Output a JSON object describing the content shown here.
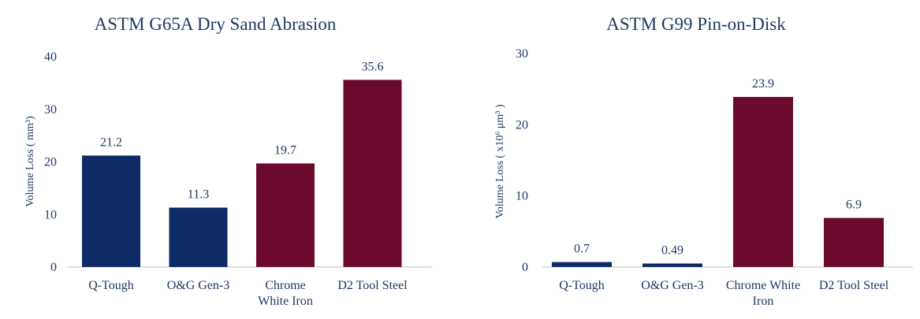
{
  "colors": {
    "navy": "#0d2b67",
    "maroon": "#6b0a2e",
    "text": "#1f3864"
  },
  "chart_data": [
    {
      "type": "bar",
      "title": "ASTM G65A Dry Sand Abrasion",
      "ylabel": "Volume Loss ( mm³)",
      "xlabel": "",
      "ylim": [
        0,
        40
      ],
      "yticks": [
        "0",
        "10",
        "20",
        "30",
        "40"
      ],
      "ytick_values": [
        0,
        10,
        20,
        30,
        40
      ],
      "grid": false,
      "categories": [
        [
          "Q-Tough"
        ],
        [
          "O&G Gen-3"
        ],
        [
          "Chrome",
          "White Iron"
        ],
        [
          "D2 Tool Steel"
        ]
      ],
      "values": [
        21.2,
        11.3,
        19.7,
        35.6
      ],
      "value_labels": [
        "21.2",
        "11.3",
        "19.7",
        "35.6"
      ],
      "bar_colors": [
        "#0d2b67",
        "#0d2b67",
        "#6b0a2e",
        "#6b0a2e"
      ]
    },
    {
      "type": "bar",
      "title": "ASTM G99 Pin-on-Disk",
      "ylabel": "Volume Loss ( x10⁶ μm³ )",
      "xlabel": "",
      "ylim": [
        0,
        30
      ],
      "yticks": [
        "0",
        "10",
        "20",
        "30"
      ],
      "ytick_values": [
        0,
        10,
        20,
        30
      ],
      "grid": false,
      "categories": [
        [
          "Q-Tough"
        ],
        [
          "O&G Gen-3"
        ],
        [
          "Chrome White",
          "Iron"
        ],
        [
          "D2 Tool Steel"
        ]
      ],
      "values": [
        0.7,
        0.49,
        23.9,
        6.9
      ],
      "value_labels": [
        "0.7",
        "0.49",
        "23.9",
        "6.9"
      ],
      "bar_colors": [
        "#0d2b67",
        "#0d2b67",
        "#6b0a2e",
        "#6b0a2e"
      ]
    }
  ]
}
